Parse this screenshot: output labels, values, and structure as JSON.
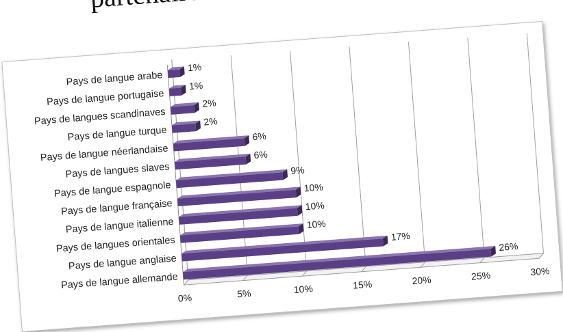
{
  "caption": "partenaires comm",
  "chart_data": {
    "type": "bar",
    "orientation": "horizontal",
    "title": "",
    "xlabel": "",
    "ylabel": "",
    "categories": [
      "Pays de langue allemande",
      "Pays de langue anglaise",
      "Pays de langues orientales",
      "Pays de langue italienne",
      "Pays de langue française",
      "Pays de langue espagnole",
      "Pays de langues slaves",
      "Pays de langue néerlandaise",
      "Pays de langue turque",
      "Pays de langues scandinaves",
      "Pays de langue portugaise",
      "Pays de langue arabe"
    ],
    "values": [
      26,
      17,
      10,
      10,
      10,
      9,
      6,
      6,
      2,
      2,
      1,
      1
    ],
    "value_labels": [
      "26%",
      "17%",
      "10%",
      "10%",
      "10%",
      "9%",
      "6%",
      "6%",
      "2%",
      "2%",
      "1%",
      "1%"
    ],
    "x_ticks": [
      "0%",
      "5%",
      "10%",
      "15%",
      "20%",
      "25%",
      "30%"
    ],
    "xlim": [
      0,
      30
    ],
    "grid": "vertical",
    "bar_color": "#5b3f86",
    "legend": "none"
  }
}
